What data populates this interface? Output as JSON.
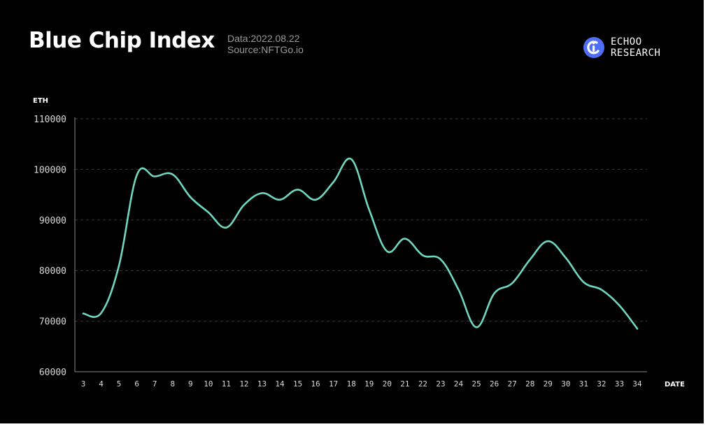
{
  "header": {
    "title": "Blue Chip Index",
    "date_line": "Data:2022.08.22",
    "source_line": "Source:NFTGo.io"
  },
  "brand": {
    "line1": "ECHOO",
    "line2": "RESEARCH",
    "logo_color": "#4f6ef7"
  },
  "colors": {
    "background": "#000000",
    "line": "#6fd7c0",
    "grid": "#3a3a3a",
    "axis": "#8a8a8a"
  },
  "chart_data": {
    "type": "line",
    "xlabel": "DATE",
    "ylabel": "ETH",
    "ylim": [
      60000,
      110000
    ],
    "yticks": [
      60000,
      70000,
      80000,
      90000,
      100000,
      110000
    ],
    "grid": true,
    "categories": [
      "3",
      "4",
      "5",
      "6",
      "7",
      "8",
      "9",
      "10",
      "11",
      "12",
      "13",
      "14",
      "15",
      "16",
      "17",
      "18",
      "19",
      "20",
      "21",
      "22",
      "23",
      "24",
      "25",
      "26",
      "27",
      "28",
      "29",
      "30",
      "31",
      "32",
      "33",
      "34"
    ],
    "series": [
      {
        "values": [
          71500,
          71600,
          81000,
          98900,
          98600,
          99000,
          94500,
          91500,
          88500,
          93000,
          95300,
          94000,
          96000,
          94000,
          97500,
          102000,
          92000,
          83800,
          86300,
          83000,
          82200,
          76200,
          68800,
          75500,
          77500,
          82200,
          85800,
          82500,
          77700,
          76200,
          73100,
          68500
        ]
      }
    ]
  }
}
